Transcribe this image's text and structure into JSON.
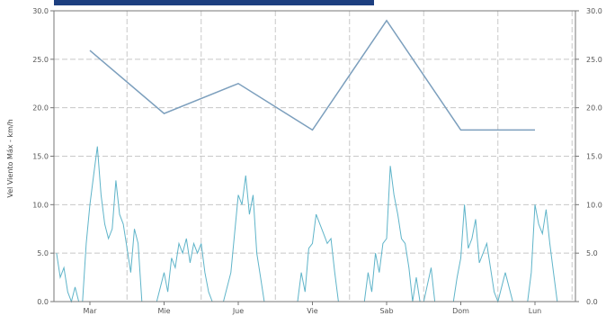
{
  "chart_data": {
    "type": "line",
    "title": "",
    "ylabel": "Vel Viento Máx - km/h",
    "ylim": [
      0,
      30
    ],
    "yticks": [
      "0.0",
      "5.0",
      "10.0",
      "15.0",
      "20.0",
      "25.0",
      "30.0"
    ],
    "x_unit": "day",
    "xlim": [
      -0.45,
      6.35
    ],
    "categories": [
      "Mar",
      "Mie",
      "Jue",
      "Vie",
      "Sab",
      "Dom",
      "Lun"
    ],
    "grid": true,
    "colors": {
      "max_series": "#7c9fbd",
      "hourly_series": "#5fb4c9",
      "title_bar": "#1d3f80",
      "grid": "#c8c8c8"
    },
    "series": [
      {
        "x": [
          0,
          1,
          2,
          3,
          4,
          5,
          6
        ],
        "values": [
          25.9,
          19.4,
          22.5,
          17.7,
          29.0,
          17.7,
          17.7
        ]
      },
      {
        "x": [
          -0.45,
          -0.4,
          -0.35,
          -0.3,
          -0.25,
          -0.2,
          -0.15,
          -0.1,
          -0.05,
          0,
          0.05,
          0.1,
          0.15,
          0.2,
          0.25,
          0.3,
          0.35,
          0.4,
          0.45,
          0.5,
          0.55,
          0.6,
          0.65,
          0.7,
          0.8,
          0.9,
          1,
          1.05,
          1.1,
          1.15,
          1.2,
          1.25,
          1.3,
          1.35,
          1.4,
          1.45,
          1.5,
          1.55,
          1.6,
          1.65,
          1.7,
          1.8,
          1.9,
          1.95,
          2,
          2.05,
          2.1,
          2.15,
          2.2,
          2.25,
          2.3,
          2.35,
          2.4,
          2.5,
          2.6,
          2.7,
          2.8,
          2.85,
          2.9,
          2.95,
          3,
          3.05,
          3.1,
          3.15,
          3.2,
          3.25,
          3.3,
          3.35,
          3.4,
          3.5,
          3.6,
          3.7,
          3.75,
          3.8,
          3.85,
          3.9,
          3.95,
          4,
          4.05,
          4.1,
          4.15,
          4.2,
          4.25,
          4.3,
          4.35,
          4.4,
          4.45,
          4.5,
          4.6,
          4.65,
          4.7,
          4.8,
          4.9,
          4.95,
          5,
          5.05,
          5.1,
          5.15,
          5.2,
          5.25,
          5.3,
          5.35,
          5.4,
          5.45,
          5.5,
          5.6,
          5.7,
          5.8,
          5.9,
          5.95,
          6,
          6.05,
          6.1,
          6.15,
          6.2,
          6.25,
          6.3
        ],
        "values": [
          5.0,
          2.5,
          3.5,
          1.0,
          0.0,
          1.5,
          0.0,
          0.0,
          6.0,
          10.0,
          13.0,
          16.0,
          11.0,
          8.0,
          6.5,
          7.5,
          12.5,
          9.0,
          8.0,
          5.5,
          3.0,
          7.5,
          6.0,
          0.0,
          0.0,
          0.0,
          3.0,
          1.0,
          4.5,
          3.5,
          6.0,
          5.0,
          6.5,
          4.0,
          6.0,
          5.0,
          6.0,
          3.0,
          1.0,
          0.0,
          0.0,
          0.0,
          3.0,
          7.0,
          11.0,
          10.0,
          13.0,
          9.0,
          11.0,
          5.0,
          2.5,
          0.0,
          0.0,
          0.0,
          0.0,
          0.0,
          0.0,
          3.0,
          1.0,
          5.5,
          6.0,
          9.0,
          8.0,
          7.0,
          6.0,
          6.5,
          3.0,
          0.0,
          0.0,
          0.0,
          0.0,
          0.0,
          3.0,
          1.0,
          5.0,
          3.0,
          6.0,
          6.5,
          14.0,
          11.0,
          9.0,
          6.5,
          6.0,
          3.5,
          0.0,
          2.5,
          0.0,
          0.0,
          3.5,
          0.0,
          0.0,
          0.0,
          0.0,
          2.5,
          4.5,
          10.0,
          5.5,
          6.5,
          8.5,
          4.0,
          5.0,
          6.0,
          3.5,
          1.0,
          0.0,
          3.0,
          0.0,
          0.0,
          0.0,
          3.0,
          10.0,
          8.0,
          7.0,
          9.5,
          6.0,
          3.0,
          0.0
        ]
      }
    ]
  }
}
